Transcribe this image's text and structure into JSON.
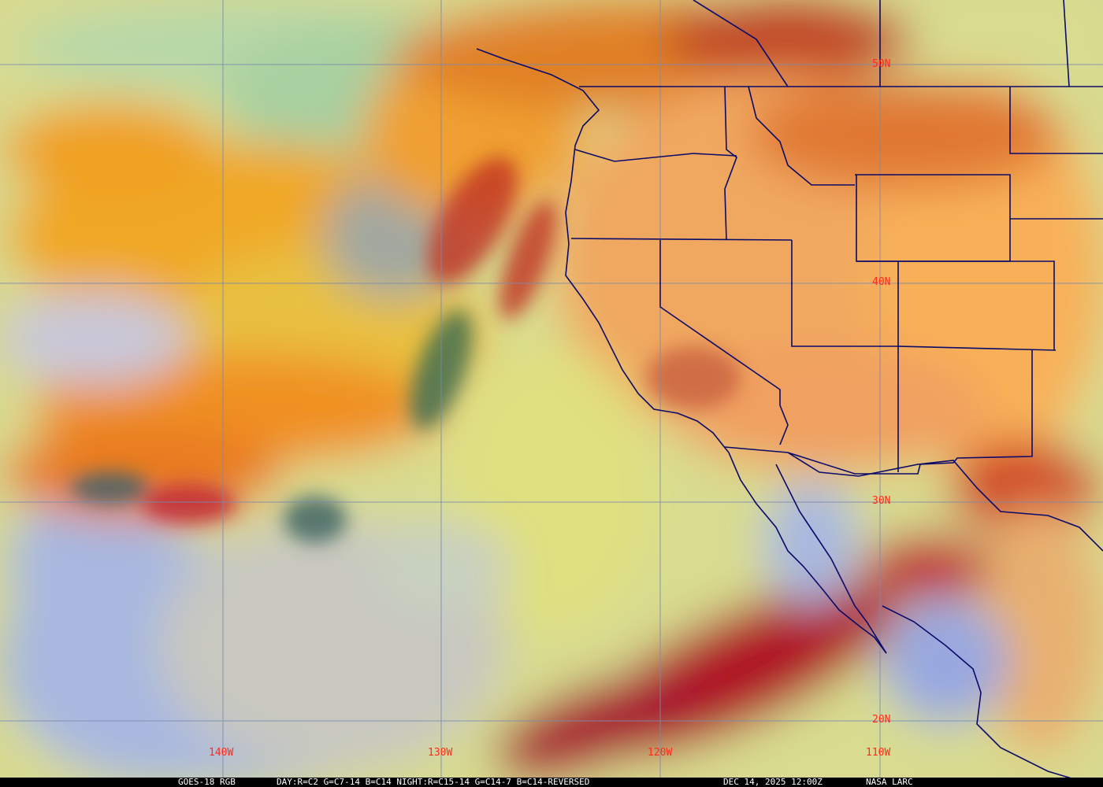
{
  "image": {
    "satellite": "GOES-18 RGB",
    "recipe": "DAY:R=C2 G=C7-14 B=C14 NIGHT:R=C15-14 G=C14-7 B=C14-REVERSED",
    "timestamp": "DEC 14, 2025 12:00Z",
    "credit": "NASA LARC"
  },
  "grid": {
    "latitude_labels": [
      "50N",
      "40N",
      "30N",
      "20N"
    ],
    "longitude_labels": [
      "140W",
      "130W",
      "120W",
      "110W"
    ]
  },
  "colors": {
    "label": "#ff2a1a",
    "gridline": "#7a8ab0",
    "boundary": "#0a0a6a",
    "land": "#f0a860",
    "ocean_clear": "#d8e090",
    "high_cloud": "#f0a020",
    "low_cloud": "#a8b8e0",
    "cold_cloud": "#b01828"
  }
}
